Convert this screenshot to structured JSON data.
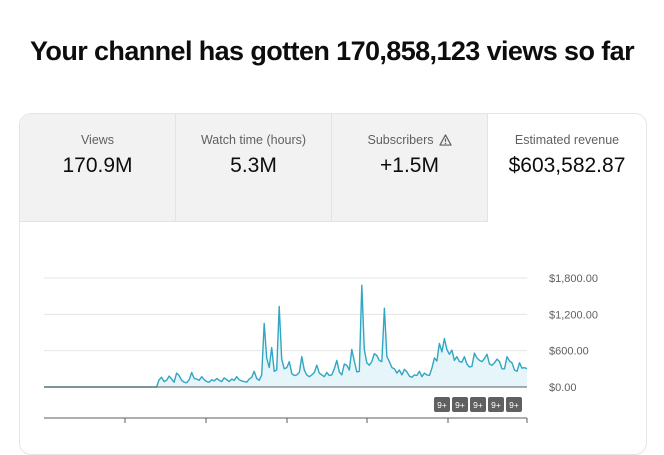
{
  "headline": "Your channel has gotten 170,858,123 views so far",
  "tabs": [
    {
      "label": "Views",
      "value": "170.9M",
      "active": false
    },
    {
      "label": "Watch time (hours)",
      "value": "5.3M",
      "active": false
    },
    {
      "label": "Subscribers",
      "value": "+1.5M",
      "active": false,
      "icon": "warning-icon"
    },
    {
      "label": "Estimated revenue",
      "value": "$603,582.87",
      "active": true
    }
  ],
  "badges": [
    "9+",
    "9+",
    "9+",
    "9+",
    "9+"
  ],
  "colors": {
    "line": "#31a6c2",
    "area": "#e6f5f9",
    "grid": "#e5e5e5",
    "baseline": "#5c5c5c"
  },
  "chart_data": {
    "type": "area",
    "ylabel": "",
    "yticks": [
      "$1,800.00",
      "$1,200.00",
      "$600.00",
      "$0.00"
    ],
    "ytick_values": [
      1800,
      1200,
      600,
      0
    ],
    "ylim": [
      0,
      1800
    ],
    "grid": true,
    "series": [
      {
        "values": [
          0,
          0,
          0,
          0,
          0,
          0,
          0,
          0,
          0,
          0,
          0,
          0,
          0,
          0,
          0,
          0,
          0,
          0,
          0,
          0,
          0,
          0,
          0,
          0,
          0,
          0,
          0,
          0,
          0,
          0,
          0,
          0,
          0,
          0,
          0,
          0,
          0,
          0,
          0,
          0,
          0,
          0,
          0,
          0,
          0,
          0,
          120,
          160,
          90,
          110,
          180,
          130,
          80,
          230,
          190,
          110,
          80,
          70,
          120,
          240,
          140,
          130,
          110,
          170,
          120,
          90,
          80,
          120,
          100,
          140,
          110,
          90,
          150,
          120,
          90,
          130,
          110,
          170,
          120,
          100,
          90,
          80,
          130,
          160,
          260,
          140,
          110,
          200,
          1050,
          480,
          320,
          650,
          260,
          280,
          1330,
          460,
          300,
          320,
          420,
          220,
          190,
          200,
          240,
          500,
          280,
          200,
          170,
          200,
          240,
          360,
          230,
          200,
          170,
          240,
          190,
          200,
          300,
          440,
          250,
          200,
          380,
          360,
          280,
          620,
          430,
          250,
          260,
          1680,
          620,
          400,
          360,
          420,
          550,
          520,
          440,
          420,
          1300,
          500,
          420,
          320,
          300,
          230,
          280,
          200,
          290,
          250,
          180,
          160,
          200,
          190,
          260,
          170,
          230,
          200,
          190,
          310,
          480,
          430,
          720,
          580,
          800,
          620,
          540,
          610,
          440,
          500,
          420,
          410,
          500,
          380,
          330,
          340,
          560,
          480,
          440,
          420,
          470,
          540,
          380,
          360,
          400,
          460,
          420,
          300,
          300,
          500,
          430,
          400,
          280,
          260,
          400,
          310,
          320,
          300
        ]
      }
    ]
  }
}
